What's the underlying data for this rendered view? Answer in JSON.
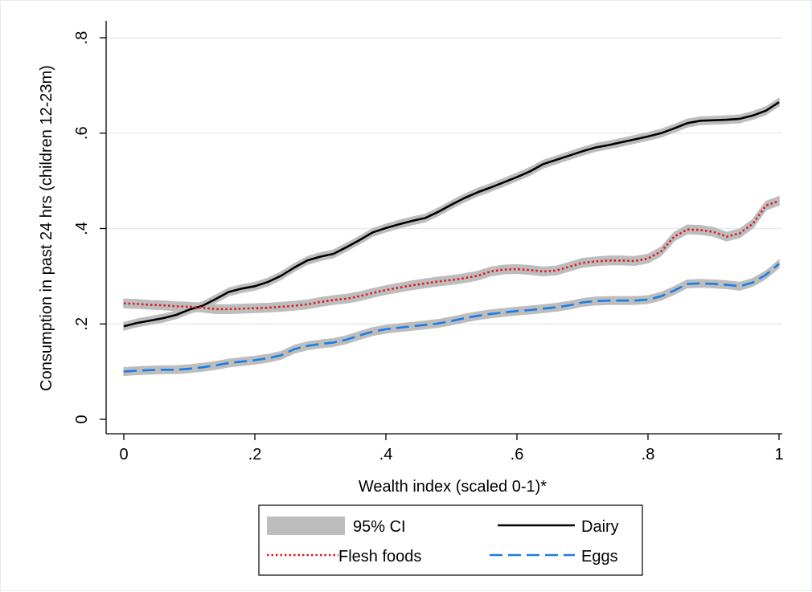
{
  "chart_data": {
    "type": "line",
    "title": "",
    "xlabel": "Wealth index (scaled 0-1)*",
    "ylabel": "Consumption in past 24 hrs (children 12-23m)",
    "xlim": [
      0,
      1
    ],
    "ylim": [
      0,
      0.8
    ],
    "x_ticks": [
      0,
      0.2,
      0.4,
      0.6,
      0.8,
      1
    ],
    "x_tick_labels": [
      "0",
      ".2",
      ".4",
      ".6",
      ".8",
      "1"
    ],
    "y_ticks": [
      0,
      0.2,
      0.4,
      0.6,
      0.8
    ],
    "y_tick_labels": [
      "0",
      ".2",
      ".4",
      ".6",
      ".8"
    ],
    "grid": true,
    "legend": {
      "placement": "bottom",
      "ci_label": "95% CI"
    },
    "colors": {
      "ci": "#bdbdbd",
      "grid": "#e3ecef",
      "axis": "#000000"
    },
    "series": [
      {
        "name": "Dairy",
        "color": "#000000",
        "dash": "solid",
        "ci": 0.008,
        "points": [
          [
            0,
            0.195
          ],
          [
            0.02,
            0.202
          ],
          [
            0.04,
            0.207
          ],
          [
            0.06,
            0.212
          ],
          [
            0.08,
            0.219
          ],
          [
            0.1,
            0.23
          ],
          [
            0.12,
            0.238
          ],
          [
            0.14,
            0.252
          ],
          [
            0.16,
            0.267
          ],
          [
            0.18,
            0.274
          ],
          [
            0.2,
            0.279
          ],
          [
            0.22,
            0.288
          ],
          [
            0.24,
            0.301
          ],
          [
            0.26,
            0.318
          ],
          [
            0.28,
            0.333
          ],
          [
            0.3,
            0.341
          ],
          [
            0.32,
            0.347
          ],
          [
            0.34,
            0.361
          ],
          [
            0.36,
            0.376
          ],
          [
            0.38,
            0.392
          ],
          [
            0.4,
            0.401
          ],
          [
            0.42,
            0.409
          ],
          [
            0.44,
            0.416
          ],
          [
            0.46,
            0.422
          ],
          [
            0.48,
            0.435
          ],
          [
            0.5,
            0.45
          ],
          [
            0.52,
            0.464
          ],
          [
            0.54,
            0.476
          ],
          [
            0.56,
            0.486
          ],
          [
            0.58,
            0.497
          ],
          [
            0.6,
            0.508
          ],
          [
            0.62,
            0.52
          ],
          [
            0.64,
            0.535
          ],
          [
            0.66,
            0.544
          ],
          [
            0.68,
            0.553
          ],
          [
            0.7,
            0.562
          ],
          [
            0.72,
            0.57
          ],
          [
            0.74,
            0.575
          ],
          [
            0.76,
            0.581
          ],
          [
            0.78,
            0.587
          ],
          [
            0.8,
            0.593
          ],
          [
            0.82,
            0.6
          ],
          [
            0.84,
            0.61
          ],
          [
            0.86,
            0.621
          ],
          [
            0.88,
            0.626
          ],
          [
            0.9,
            0.627
          ],
          [
            0.92,
            0.628
          ],
          [
            0.94,
            0.63
          ],
          [
            0.96,
            0.637
          ],
          [
            0.98,
            0.647
          ],
          [
            1,
            0.665
          ]
        ]
      },
      {
        "name": "Flesh foods",
        "color": "#e3161b",
        "dash": "dot",
        "ci": 0.009,
        "points": [
          [
            0,
            0.243
          ],
          [
            0.02,
            0.242
          ],
          [
            0.04,
            0.24
          ],
          [
            0.06,
            0.239
          ],
          [
            0.08,
            0.237
          ],
          [
            0.1,
            0.236
          ],
          [
            0.12,
            0.234
          ],
          [
            0.14,
            0.231
          ],
          [
            0.16,
            0.231
          ],
          [
            0.18,
            0.232
          ],
          [
            0.2,
            0.233
          ],
          [
            0.22,
            0.234
          ],
          [
            0.24,
            0.236
          ],
          [
            0.26,
            0.238
          ],
          [
            0.28,
            0.241
          ],
          [
            0.3,
            0.246
          ],
          [
            0.32,
            0.25
          ],
          [
            0.34,
            0.253
          ],
          [
            0.36,
            0.258
          ],
          [
            0.38,
            0.265
          ],
          [
            0.4,
            0.271
          ],
          [
            0.42,
            0.276
          ],
          [
            0.44,
            0.281
          ],
          [
            0.46,
            0.285
          ],
          [
            0.48,
            0.289
          ],
          [
            0.5,
            0.292
          ],
          [
            0.52,
            0.296
          ],
          [
            0.54,
            0.301
          ],
          [
            0.56,
            0.31
          ],
          [
            0.58,
            0.314
          ],
          [
            0.6,
            0.315
          ],
          [
            0.62,
            0.313
          ],
          [
            0.64,
            0.31
          ],
          [
            0.66,
            0.312
          ],
          [
            0.68,
            0.32
          ],
          [
            0.7,
            0.328
          ],
          [
            0.72,
            0.331
          ],
          [
            0.74,
            0.333
          ],
          [
            0.76,
            0.333
          ],
          [
            0.78,
            0.332
          ],
          [
            0.8,
            0.337
          ],
          [
            0.82,
            0.352
          ],
          [
            0.84,
            0.383
          ],
          [
            0.86,
            0.398
          ],
          [
            0.88,
            0.397
          ],
          [
            0.9,
            0.393
          ],
          [
            0.92,
            0.383
          ],
          [
            0.94,
            0.39
          ],
          [
            0.96,
            0.41
          ],
          [
            0.98,
            0.448
          ],
          [
            1,
            0.458
          ]
        ]
      },
      {
        "name": "Eggs",
        "color": "#1a7de6",
        "dash": "dash",
        "ci": 0.008,
        "points": [
          [
            0,
            0.1
          ],
          [
            0.02,
            0.102
          ],
          [
            0.04,
            0.103
          ],
          [
            0.06,
            0.104
          ],
          [
            0.08,
            0.104
          ],
          [
            0.1,
            0.106
          ],
          [
            0.12,
            0.109
          ],
          [
            0.14,
            0.113
          ],
          [
            0.16,
            0.118
          ],
          [
            0.18,
            0.121
          ],
          [
            0.2,
            0.124
          ],
          [
            0.22,
            0.128
          ],
          [
            0.24,
            0.134
          ],
          [
            0.26,
            0.147
          ],
          [
            0.28,
            0.154
          ],
          [
            0.3,
            0.158
          ],
          [
            0.32,
            0.161
          ],
          [
            0.34,
            0.167
          ],
          [
            0.36,
            0.176
          ],
          [
            0.38,
            0.184
          ],
          [
            0.4,
            0.189
          ],
          [
            0.42,
            0.192
          ],
          [
            0.44,
            0.195
          ],
          [
            0.46,
            0.198
          ],
          [
            0.48,
            0.201
          ],
          [
            0.5,
            0.206
          ],
          [
            0.52,
            0.212
          ],
          [
            0.54,
            0.217
          ],
          [
            0.56,
            0.221
          ],
          [
            0.58,
            0.224
          ],
          [
            0.6,
            0.227
          ],
          [
            0.62,
            0.229
          ],
          [
            0.64,
            0.232
          ],
          [
            0.66,
            0.235
          ],
          [
            0.68,
            0.239
          ],
          [
            0.7,
            0.245
          ],
          [
            0.72,
            0.248
          ],
          [
            0.74,
            0.249
          ],
          [
            0.76,
            0.249
          ],
          [
            0.78,
            0.249
          ],
          [
            0.8,
            0.251
          ],
          [
            0.82,
            0.258
          ],
          [
            0.84,
            0.27
          ],
          [
            0.86,
            0.284
          ],
          [
            0.88,
            0.285
          ],
          [
            0.9,
            0.284
          ],
          [
            0.92,
            0.282
          ],
          [
            0.94,
            0.279
          ],
          [
            0.96,
            0.287
          ],
          [
            0.98,
            0.303
          ],
          [
            1,
            0.326
          ]
        ]
      }
    ]
  }
}
